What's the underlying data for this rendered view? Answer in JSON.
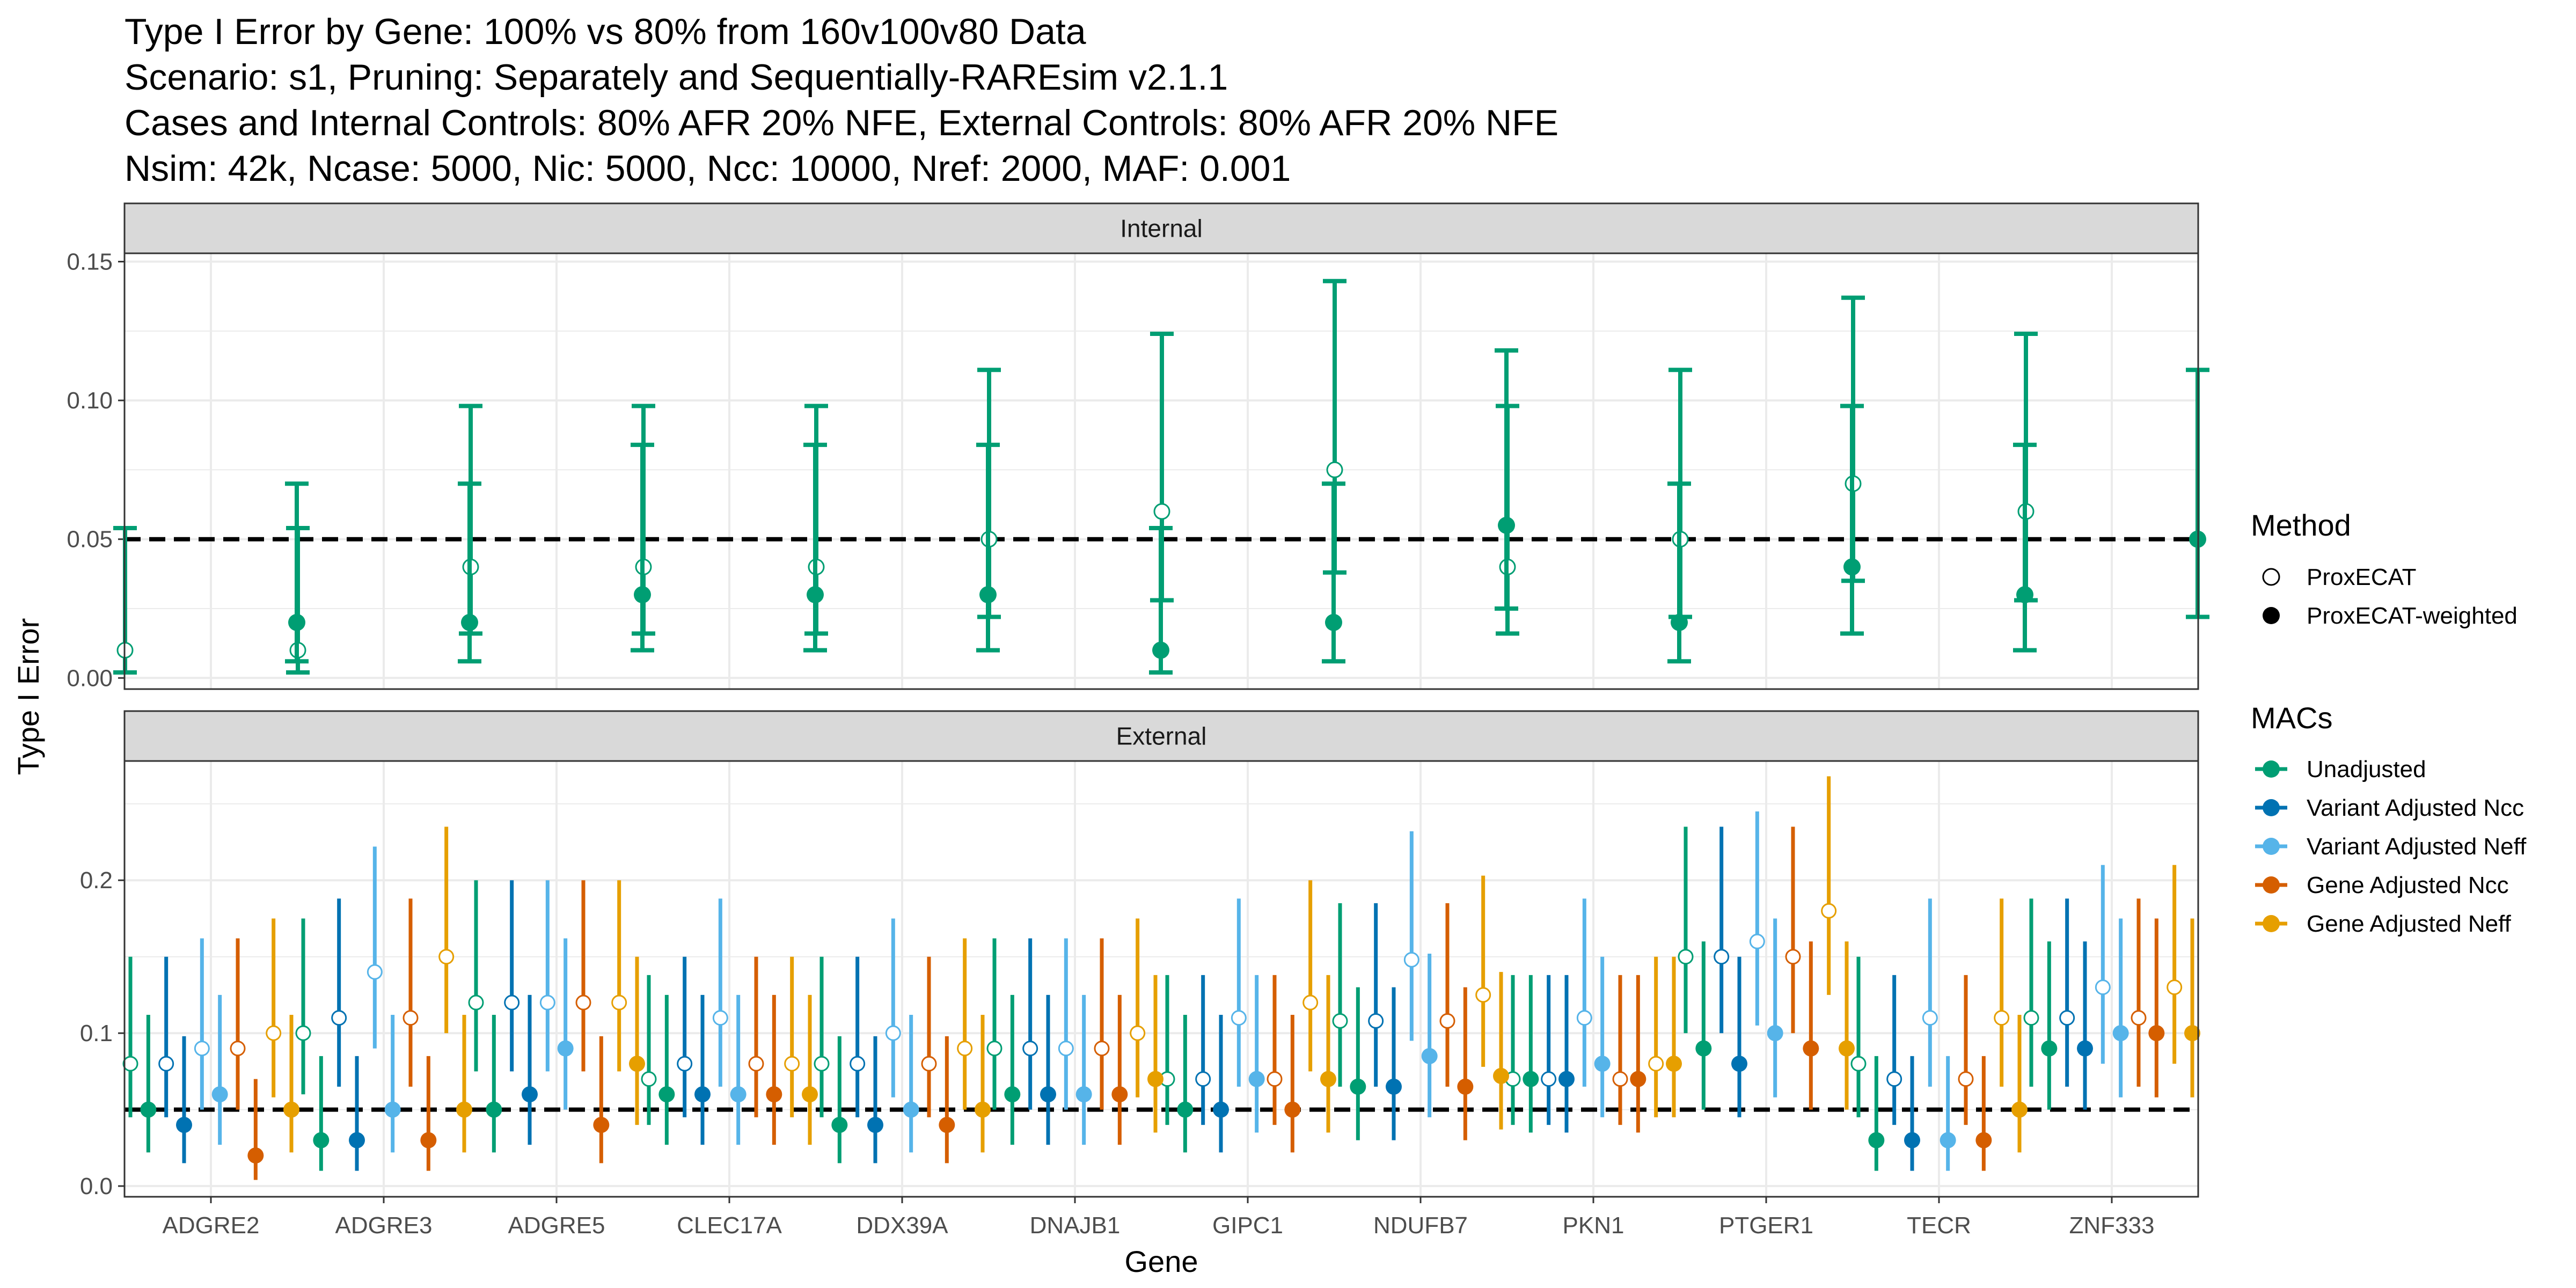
{
  "title_lines": [
    "Type I Error by Gene: 100% vs 80% from 160v100v80 Data",
    "Scenario: s1, Pruning: Separately and Sequentially-RAREsim v2.1.1",
    "Cases and Internal Controls: 80% AFR 20% NFE, External Controls: 80% AFR 20% NFE",
    "Nsim: 42k, Ncase: 5000, Nic: 5000, Ncc: 10000, Nref: 2000, MAF: 0.001"
  ],
  "colors": {
    "Unadjusted": "#009E73",
    "Variant Adjusted Ncc": "#0072B2",
    "Variant Adjusted Neff": "#56B4E9",
    "Gene Adjusted Ncc": "#D55E00",
    "Gene Adjusted Neff": "#E69F00",
    "strip_fill": "#d9d9d9",
    "grid": "#ebebeb",
    "reference_line": "#000000"
  },
  "chart_data": {
    "type": "scatter",
    "subtype": "point estimates with confidence interval error bars, faceted",
    "xlabel": "Gene",
    "ylabel": "Type I Error",
    "categories": [
      "ADGRE2",
      "ADGRE3",
      "ADGRE5",
      "CLEC17A",
      "DDX39A",
      "DNAJB1",
      "GIPC1",
      "NDUFB7",
      "PKN1",
      "PTGER1",
      "TECR",
      "ZNF333"
    ],
    "reference_line_y": 0.05,
    "grid": true,
    "legend_position": "right",
    "legend": {
      "method_title": "Method",
      "method_items": [
        {
          "name": "ProxECAT",
          "shape": "open-circle"
        },
        {
          "name": "ProxECAT-weighted",
          "shape": "filled-circle"
        }
      ],
      "macs_title": "MACs",
      "macs_items": [
        "Unadjusted",
        "Variant Adjusted Ncc",
        "Variant Adjusted Neff",
        "Gene Adjusted Ncc",
        "Gene Adjusted Neff"
      ]
    },
    "panels": [
      {
        "strip": "Internal",
        "ylim": [
          -0.004,
          0.153
        ],
        "yticks": [
          0.0,
          0.05,
          0.1,
          0.15
        ],
        "ytick_labels": [
          "0.00",
          "0.05",
          "0.10",
          "0.15"
        ],
        "series": [
          {
            "mac": "Unadjusted",
            "method": "ProxECAT",
            "values": [
              0.01,
              0.01,
              0.04,
              0.04,
              0.04,
              0.05,
              0.06,
              0.075,
              0.04,
              0.05,
              0.07,
              0.06
            ],
            "lower": [
              0.002,
              0.002,
              0.016,
              0.016,
              0.016,
              0.022,
              0.028,
              0.038,
              0.016,
              0.022,
              0.035,
              0.028
            ],
            "upper": [
              0.054,
              0.054,
              0.098,
              0.098,
              0.098,
              0.111,
              0.124,
              0.143,
              0.098,
              0.111,
              0.137,
              0.124
            ]
          },
          {
            "mac": "Unadjusted",
            "method": "ProxECAT-weighted",
            "values": [
              0.02,
              0.02,
              0.03,
              0.03,
              0.03,
              0.01,
              0.02,
              0.055,
              0.02,
              0.04,
              0.03,
              0.05
            ],
            "lower": [
              0.006,
              0.006,
              0.01,
              0.01,
              0.01,
              0.002,
              0.006,
              0.025,
              0.006,
              0.016,
              0.01,
              0.022
            ],
            "upper": [
              0.07,
              0.07,
              0.084,
              0.084,
              0.084,
              0.054,
              0.07,
              0.118,
              0.07,
              0.098,
              0.084,
              0.111
            ]
          }
        ]
      },
      {
        "strip": "External",
        "ylim": [
          -0.007,
          0.278
        ],
        "yticks": [
          0.0,
          0.1,
          0.2
        ],
        "ytick_labels": [
          "0.0",
          "0.1",
          "0.2"
        ],
        "series": [
          {
            "mac": "Unadjusted",
            "method": "ProxECAT",
            "values": [
              0.08,
              0.1,
              0.12,
              0.07,
              0.08,
              0.09,
              0.07,
              0.108,
              0.07,
              0.15,
              0.08,
              0.11
            ],
            "lower": [
              0.045,
              0.06,
              0.075,
              0.04,
              0.045,
              0.05,
              0.04,
              0.065,
              0.04,
              0.1,
              0.045,
              0.065
            ],
            "upper": [
              0.15,
              0.175,
              0.2,
              0.138,
              0.15,
              0.162,
              0.138,
              0.185,
              0.138,
              0.235,
              0.15,
              0.188
            ]
          },
          {
            "mac": "Unadjusted",
            "method": "ProxECAT-weighted",
            "values": [
              0.05,
              0.03,
              0.05,
              0.06,
              0.04,
              0.06,
              0.05,
              0.065,
              0.07,
              0.09,
              0.03,
              0.09
            ],
            "lower": [
              0.022,
              0.01,
              0.022,
              0.027,
              0.015,
              0.027,
              0.022,
              0.03,
              0.035,
              0.05,
              0.01,
              0.05
            ],
            "upper": [
              0.112,
              0.085,
              0.112,
              0.125,
              0.098,
              0.125,
              0.112,
              0.13,
              0.138,
              0.16,
              0.085,
              0.16
            ]
          },
          {
            "mac": "Variant Adjusted Ncc",
            "method": "ProxECAT",
            "values": [
              0.08,
              0.11,
              0.12,
              0.08,
              0.08,
              0.09,
              0.07,
              0.108,
              0.07,
              0.15,
              0.07,
              0.11
            ],
            "lower": [
              0.045,
              0.065,
              0.075,
              0.045,
              0.045,
              0.05,
              0.04,
              0.065,
              0.04,
              0.1,
              0.04,
              0.065
            ],
            "upper": [
              0.15,
              0.188,
              0.2,
              0.15,
              0.15,
              0.162,
              0.138,
              0.185,
              0.138,
              0.235,
              0.138,
              0.188
            ]
          },
          {
            "mac": "Variant Adjusted Ncc",
            "method": "ProxECAT-weighted",
            "values": [
              0.04,
              0.03,
              0.06,
              0.06,
              0.04,
              0.06,
              0.05,
              0.065,
              0.07,
              0.08,
              0.03,
              0.09
            ],
            "lower": [
              0.015,
              0.01,
              0.027,
              0.027,
              0.015,
              0.027,
              0.022,
              0.03,
              0.035,
              0.045,
              0.01,
              0.05
            ],
            "upper": [
              0.098,
              0.085,
              0.125,
              0.125,
              0.098,
              0.125,
              0.112,
              0.13,
              0.138,
              0.15,
              0.085,
              0.16
            ]
          },
          {
            "mac": "Variant Adjusted Neff",
            "method": "ProxECAT",
            "values": [
              0.09,
              0.14,
              0.12,
              0.11,
              0.1,
              0.09,
              0.11,
              0.148,
              0.11,
              0.16,
              0.11,
              0.13
            ],
            "lower": [
              0.05,
              0.09,
              0.075,
              0.065,
              0.058,
              0.05,
              0.065,
              0.095,
              0.065,
              0.105,
              0.065,
              0.08
            ],
            "upper": [
              0.162,
              0.222,
              0.2,
              0.188,
              0.175,
              0.162,
              0.188,
              0.232,
              0.188,
              0.245,
              0.188,
              0.21
            ]
          },
          {
            "mac": "Variant Adjusted Neff",
            "method": "ProxECAT-weighted",
            "values": [
              0.06,
              0.05,
              0.09,
              0.06,
              0.05,
              0.06,
              0.07,
              0.085,
              0.08,
              0.1,
              0.03,
              0.1
            ],
            "lower": [
              0.027,
              0.022,
              0.05,
              0.027,
              0.022,
              0.027,
              0.035,
              0.045,
              0.045,
              0.058,
              0.01,
              0.058
            ],
            "upper": [
              0.125,
              0.112,
              0.162,
              0.125,
              0.112,
              0.125,
              0.138,
              0.152,
              0.15,
              0.175,
              0.085,
              0.175
            ]
          },
          {
            "mac": "Gene Adjusted Ncc",
            "method": "ProxECAT",
            "values": [
              0.09,
              0.11,
              0.12,
              0.08,
              0.08,
              0.09,
              0.07,
              0.108,
              0.07,
              0.15,
              0.07,
              0.11
            ],
            "lower": [
              0.05,
              0.065,
              0.075,
              0.045,
              0.045,
              0.05,
              0.04,
              0.065,
              0.04,
              0.1,
              0.04,
              0.065
            ],
            "upper": [
              0.162,
              0.188,
              0.2,
              0.15,
              0.15,
              0.162,
              0.138,
              0.185,
              0.138,
              0.235,
              0.138,
              0.188
            ]
          },
          {
            "mac": "Gene Adjusted Ncc",
            "method": "ProxECAT-weighted",
            "values": [
              0.02,
              0.03,
              0.04,
              0.06,
              0.04,
              0.06,
              0.05,
              0.065,
              0.07,
              0.09,
              0.03,
              0.1
            ],
            "lower": [
              0.004,
              0.01,
              0.015,
              0.027,
              0.015,
              0.027,
              0.022,
              0.03,
              0.035,
              0.05,
              0.01,
              0.058
            ],
            "upper": [
              0.07,
              0.085,
              0.098,
              0.125,
              0.098,
              0.125,
              0.112,
              0.13,
              0.138,
              0.16,
              0.085,
              0.175
            ]
          },
          {
            "mac": "Gene Adjusted Neff",
            "method": "ProxECAT",
            "values": [
              0.1,
              0.15,
              0.12,
              0.08,
              0.09,
              0.1,
              0.12,
              0.125,
              0.08,
              0.18,
              0.11,
              0.13
            ],
            "lower": [
              0.058,
              0.1,
              0.075,
              0.045,
              0.05,
              0.058,
              0.075,
              0.078,
              0.045,
              0.125,
              0.065,
              0.08
            ],
            "upper": [
              0.175,
              0.235,
              0.2,
              0.15,
              0.162,
              0.175,
              0.2,
              0.203,
              0.15,
              0.268,
              0.188,
              0.21
            ]
          },
          {
            "mac": "Gene Adjusted Neff",
            "method": "ProxECAT-weighted",
            "values": [
              0.05,
              0.05,
              0.08,
              0.06,
              0.05,
              0.07,
              0.07,
              0.072,
              0.08,
              0.09,
              0.05,
              0.1
            ],
            "lower": [
              0.022,
              0.022,
              0.04,
              0.027,
              0.022,
              0.035,
              0.035,
              0.037,
              0.045,
              0.05,
              0.022,
              0.058
            ],
            "upper": [
              0.112,
              0.112,
              0.15,
              0.125,
              0.112,
              0.138,
              0.138,
              0.14,
              0.15,
              0.16,
              0.112,
              0.175
            ]
          }
        ]
      }
    ]
  }
}
